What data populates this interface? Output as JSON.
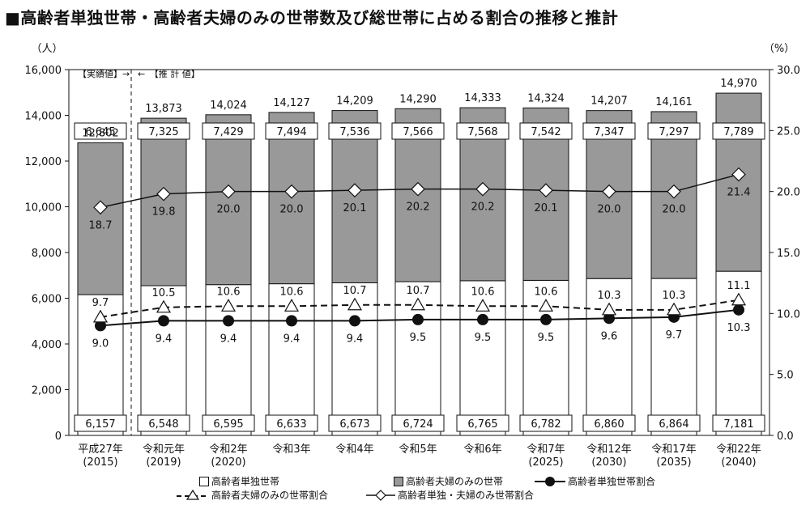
{
  "title": "■高齢者単独世帯・高齢者夫婦のみの世帯数及び総世帯に占める割合の推移と推計",
  "chart_data": {
    "type": "bar",
    "left_unit": "（人）",
    "right_unit": "（%）",
    "left_ticks": [
      "0",
      "2,000",
      "4,000",
      "6,000",
      "8,000",
      "10,000",
      "12,000",
      "14,000",
      "16,000"
    ],
    "right_ticks": [
      "0.0",
      "5.0",
      "10.0",
      "15.0",
      "20.0",
      "25.0",
      "30.0"
    ],
    "ylim_left": [
      0,
      16000
    ],
    "ylim_right": [
      0,
      30
    ],
    "period_actual": "【実績値】→",
    "period_forecast": "←　【推 計 値】",
    "categories": [
      [
        "平成27年",
        "(2015)"
      ],
      [
        "令和元年",
        "(2019)"
      ],
      [
        "令和2年",
        "(2020)"
      ],
      [
        "令和3年",
        ""
      ],
      [
        "令和4年",
        ""
      ],
      [
        "令和5年",
        ""
      ],
      [
        "令和6年",
        ""
      ],
      [
        "令和7年",
        "(2025)"
      ],
      [
        "令和12年",
        "(2030)"
      ],
      [
        "令和17年",
        "(2035)"
      ],
      [
        "令和22年",
        "(2040)"
      ]
    ],
    "totals": [
      12802,
      13873,
      14024,
      14127,
      14209,
      14290,
      14333,
      14324,
      14207,
      14161,
      14970
    ],
    "totals_text": [
      "12,802",
      "13,873",
      "14,024",
      "14,127",
      "14,209",
      "14,290",
      "14,333",
      "14,324",
      "14,207",
      "14,161",
      "14,970"
    ],
    "series": [
      {
        "name": "高齢者単独世帯",
        "kind": "bar",
        "color": "#ffffff",
        "values": [
          6157,
          6548,
          6595,
          6633,
          6673,
          6724,
          6765,
          6782,
          6860,
          6864,
          7181
        ],
        "labels": [
          "6,157",
          "6,548",
          "6,595",
          "6,633",
          "6,673",
          "6,724",
          "6,765",
          "6,782",
          "6,860",
          "6,864",
          "7,181"
        ]
      },
      {
        "name": "高齢者夫婦のみの世帯",
        "kind": "bar",
        "color": "#999999",
        "values": [
          6645,
          7325,
          7429,
          7494,
          7536,
          7566,
          7568,
          7542,
          7347,
          7297,
          7789
        ],
        "labels": [
          "6.645",
          "7,325",
          "7,429",
          "7,494",
          "7,536",
          "7,566",
          "7,568",
          "7,542",
          "7,347",
          "7,297",
          "7,789"
        ]
      },
      {
        "name": "高齢者単独世帯割合",
        "kind": "line",
        "marker": "circle",
        "values": [
          9.0,
          9.4,
          9.4,
          9.4,
          9.4,
          9.5,
          9.5,
          9.5,
          9.6,
          9.7,
          10.3
        ],
        "labels": [
          "9.0",
          "9.4",
          "9.4",
          "9.4",
          "9.4",
          "9.5",
          "9.5",
          "9.5",
          "9.6",
          "9.7",
          "10.3"
        ]
      },
      {
        "name": "高齢者夫婦のみの世帯割合",
        "kind": "line",
        "marker": "triangle",
        "dashed": true,
        "values": [
          9.7,
          10.5,
          10.6,
          10.6,
          10.7,
          10.7,
          10.6,
          10.6,
          10.3,
          10.3,
          11.1
        ],
        "labels": [
          "9.7",
          "10.5",
          "10.6",
          "10.6",
          "10.7",
          "10.7",
          "10.6",
          "10.6",
          "10.3",
          "10.3",
          "11.1"
        ]
      },
      {
        "name": "高齢者単独・夫婦のみ世帯割合",
        "kind": "line",
        "marker": "diamond",
        "values": [
          18.7,
          19.8,
          20.0,
          20.0,
          20.1,
          20.2,
          20.2,
          20.1,
          20.0,
          20.0,
          21.4
        ],
        "labels": [
          "18.7",
          "19.8",
          "20.0",
          "20.0",
          "20.1",
          "20.2",
          "20.2",
          "20.1",
          "20.0",
          "20.0",
          "21.4"
        ]
      }
    ]
  },
  "legend": {
    "single_bar": "高齢者単独世帯",
    "couple_bar": "高齢者夫婦のみの世帯",
    "single_ratio": "高齢者単独世帯割合",
    "couple_ratio": "高齢者夫婦のみの世帯割合",
    "combined_ratio": "高齢者単独・夫婦のみ世帯割合"
  }
}
